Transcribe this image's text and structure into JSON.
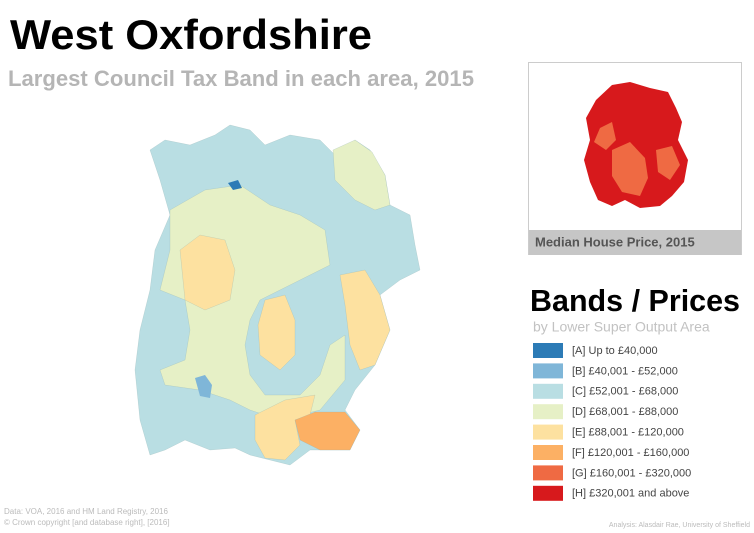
{
  "header": {
    "title": "West Oxfordshire",
    "subtitle": "Largest Council Tax Band in each area, 2015"
  },
  "inset": {
    "caption": "Median House Price, 2015"
  },
  "legend": {
    "title": "Bands / Prices",
    "subtitle": "by Lower Super Output Area",
    "items": [
      {
        "label": "[A] Up to £40,000",
        "color": "#2c7bb6"
      },
      {
        "label": "[B] £40,001 - £52,000",
        "color": "#7fb6d8"
      },
      {
        "label": "[C] £52,001 - £68,000",
        "color": "#b9dee3"
      },
      {
        "label": "[D] £68,001 - £88,000",
        "color": "#e6f0c6"
      },
      {
        "label": "[E] £88,001 - £120,000",
        "color": "#fde1a0"
      },
      {
        "label": "[F] £120,001 - £160,000",
        "color": "#fcb064"
      },
      {
        "label": "[G] £160,001 - £320,000",
        "color": "#ef6a43"
      },
      {
        "label": "[H] £320,001 and above",
        "color": "#d7191c"
      }
    ]
  },
  "footer": {
    "source": [
      "Data: VOA, 2016 and HM Land Registry, 2016",
      "© Crown copyright [and database right], [2016]"
    ],
    "credit": "Analysis: Alasdair Rae, University of Sheffield"
  }
}
